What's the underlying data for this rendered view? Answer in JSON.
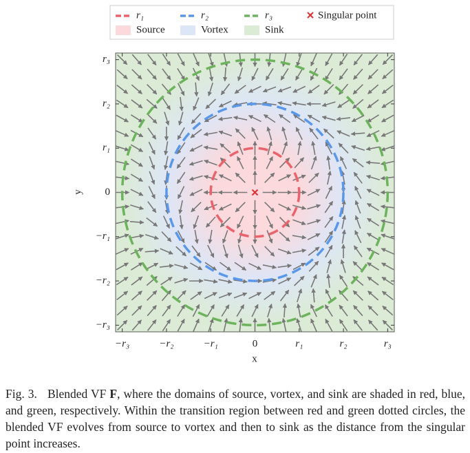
{
  "chart_data": {
    "type": "vector-field",
    "xlabel": "x",
    "ylabel": "y",
    "xlim": [
      -3.15,
      3.15
    ],
    "ylim": [
      -3.15,
      3.15
    ],
    "xticks": [
      {
        "value": -3,
        "label": "−r₃"
      },
      {
        "value": -2,
        "label": "−r₂"
      },
      {
        "value": -1,
        "label": "−r₁"
      },
      0,
      {
        "value": 1,
        "label": "r₁"
      },
      {
        "value": 2,
        "label": "r₂"
      },
      {
        "value": 3,
        "label": "r₃"
      }
    ],
    "yticks": [
      {
        "value": -3,
        "label": "−r₃"
      },
      {
        "value": -2,
        "label": "−r₂"
      },
      {
        "value": -1,
        "label": "−r₁"
      },
      0,
      {
        "value": 1,
        "label": "r₁"
      },
      {
        "value": 2,
        "label": "r₂"
      },
      {
        "value": 3,
        "label": "r₃"
      }
    ],
    "arrow_grid": [
      -3,
      -2.67,
      -2.33,
      -2,
      -1.67,
      -1.33,
      -1,
      -0.67,
      -0.33,
      0,
      0.33,
      0.67,
      1,
      1.33,
      1.67,
      2,
      2.33,
      2.67,
      3
    ],
    "arrow_color": "#777777",
    "series": [
      {
        "name": "r₁",
        "color": "#e8636b",
        "radius": 1
      },
      {
        "name": "r₂",
        "color": "#5b97e8",
        "radius": 2
      },
      {
        "name": "r₃",
        "color": "#6db35d",
        "radius": 3
      }
    ],
    "regions": [
      {
        "name": "Source",
        "color": "#fbd9dc"
      },
      {
        "name": "Vortex",
        "color": "#dde6f7"
      },
      {
        "name": "Sink",
        "color": "#dcebd6"
      }
    ],
    "singular_point": {
      "name": "Singular point",
      "color": "#e03030",
      "x": 0,
      "y": 0
    }
  },
  "caption": {
    "label": "Fig. 3.",
    "segments": [
      "Blended VF ",
      "F",
      ", where the domains of source, vortex, and sink are shaded in red, blue, and green, respectively. Within the transition region between red and green dotted circles, the blended VF evolves from source to vortex and then to sink as the distance from the singular point increases."
    ]
  }
}
